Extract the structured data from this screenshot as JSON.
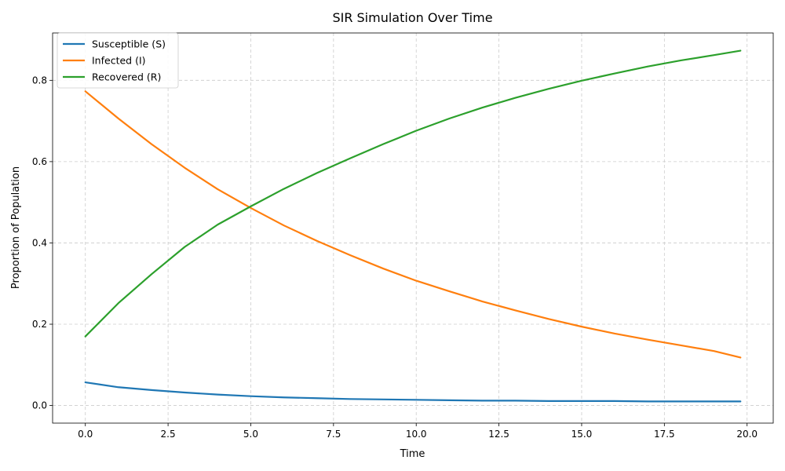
{
  "chart_data": {
    "type": "line",
    "title": "SIR Simulation Over Time",
    "xlabel": "Time",
    "ylabel": "Proportion of Population",
    "xlim": [
      -0.99,
      20.79
    ],
    "ylim": [
      -0.0433,
      0.9165
    ],
    "xticks": [
      0.0,
      2.5,
      5.0,
      7.5,
      10.0,
      12.5,
      15.0,
      17.5,
      20.0
    ],
    "yticks": [
      0.0,
      0.2,
      0.4,
      0.6,
      0.8
    ],
    "xtick_labels": [
      "0.0",
      "2.5",
      "5.0",
      "7.5",
      "10.0",
      "12.5",
      "15.0",
      "17.5",
      "20.0"
    ],
    "ytick_labels": [
      "0.0",
      "0.2",
      "0.4",
      "0.6",
      "0.8"
    ],
    "grid": true,
    "legend_position": "top-left",
    "x": [
      0,
      1,
      2,
      3,
      4,
      5,
      6,
      7,
      8,
      9,
      10,
      11,
      12,
      13,
      14,
      15,
      16,
      17,
      18,
      19,
      19.8
    ],
    "series": [
      {
        "name": "Susceptible (S)",
        "color": "#1f77b4",
        "values": [
          0.057,
          0.045,
          0.038,
          0.032,
          0.027,
          0.023,
          0.02,
          0.018,
          0.016,
          0.015,
          0.014,
          0.013,
          0.012,
          0.012,
          0.011,
          0.011,
          0.011,
          0.01,
          0.01,
          0.01,
          0.01
        ]
      },
      {
        "name": "Infected (I)",
        "color": "#ff7f0e",
        "values": [
          0.773,
          0.706,
          0.643,
          0.585,
          0.532,
          0.486,
          0.443,
          0.405,
          0.37,
          0.337,
          0.307,
          0.281,
          0.256,
          0.234,
          0.213,
          0.194,
          0.177,
          0.162,
          0.148,
          0.134,
          0.118
        ]
      },
      {
        "name": "Recovered (R)",
        "color": "#2ca02c",
        "values": [
          0.17,
          0.252,
          0.323,
          0.39,
          0.445,
          0.49,
          0.533,
          0.572,
          0.608,
          0.643,
          0.676,
          0.706,
          0.733,
          0.757,
          0.779,
          0.799,
          0.817,
          0.834,
          0.849,
          0.862,
          0.873
        ]
      }
    ]
  }
}
